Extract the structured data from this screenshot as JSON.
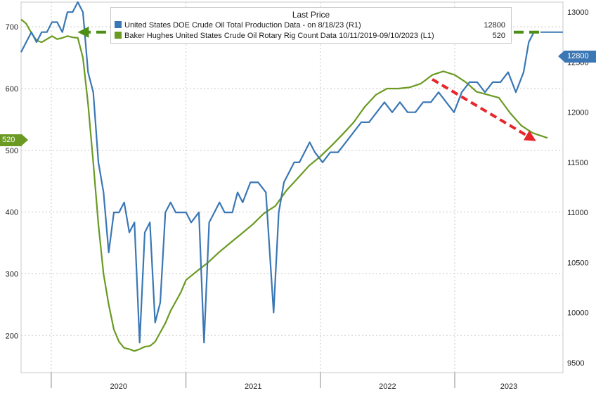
{
  "legend": {
    "header": "Last Price",
    "series_1_label": "United States DOE Crude Oil Total Production Data -  on 8/18/23  (R1)",
    "series_1_value": "12800",
    "series_2_label": "Baker Hughes United States Crude Oil Rotary Rig Count Data 10/11/2019-09/10/2023   (L1)",
    "series_2_value": "520"
  },
  "tags": {
    "right_value": "12800",
    "left_value": "520"
  },
  "colors": {
    "production": "#3a77b4",
    "rigs": "#6a9a22",
    "arrow_green": "#4d8f16",
    "arrow_red": "#e8262a",
    "grid": "#c8c8c8"
  },
  "chart_data": {
    "type": "line",
    "x_range": [
      "2019-10-11",
      "2023-09-10"
    ],
    "x_ticks": [
      "2020",
      "2021",
      "2022",
      "2023"
    ],
    "left_axis": {
      "ticks": [
        200,
        300,
        400,
        500,
        600,
        700
      ],
      "range": [
        140,
        740
      ]
    },
    "right_axis": {
      "ticks": [
        9500,
        10000,
        10500,
        11000,
        11500,
        12000,
        12500,
        13000
      ],
      "range": [
        9400,
        13100
      ]
    },
    "grid": true,
    "series": [
      {
        "name": "Baker Hughes United States Crude Oil Rotary Rig Count",
        "axis": "left",
        "points": [
          [
            "2019-10-11",
            712
          ],
          [
            "2019-10-25",
            705
          ],
          [
            "2019-11-08",
            690
          ],
          [
            "2019-11-22",
            678
          ],
          [
            "2019-12-06",
            675
          ],
          [
            "2019-12-20",
            680
          ],
          [
            "2020-01-03",
            685
          ],
          [
            "2020-01-17",
            680
          ],
          [
            "2020-01-31",
            682
          ],
          [
            "2020-02-14",
            685
          ],
          [
            "2020-02-28",
            683
          ],
          [
            "2020-03-13",
            682
          ],
          [
            "2020-03-27",
            650
          ],
          [
            "2020-04-10",
            575
          ],
          [
            "2020-04-24",
            480
          ],
          [
            "2020-05-08",
            380
          ],
          [
            "2020-05-22",
            300
          ],
          [
            "2020-06-05",
            250
          ],
          [
            "2020-06-19",
            210
          ],
          [
            "2020-07-03",
            190
          ],
          [
            "2020-07-17",
            180
          ],
          [
            "2020-07-31",
            178
          ],
          [
            "2020-08-14",
            175
          ],
          [
            "2020-08-28",
            178
          ],
          [
            "2020-09-11",
            182
          ],
          [
            "2020-09-25",
            183
          ],
          [
            "2020-10-09",
            190
          ],
          [
            "2020-10-23",
            205
          ],
          [
            "2020-11-06",
            220
          ],
          [
            "2020-11-20",
            240
          ],
          [
            "2020-12-04",
            255
          ],
          [
            "2020-12-18",
            270
          ],
          [
            "2021-01-01",
            290
          ],
          [
            "2021-02-01",
            305
          ],
          [
            "2021-03-01",
            318
          ],
          [
            "2021-04-01",
            335
          ],
          [
            "2021-05-01",
            350
          ],
          [
            "2021-06-01",
            365
          ],
          [
            "2021-07-01",
            380
          ],
          [
            "2021-08-01",
            398
          ],
          [
            "2021-09-01",
            410
          ],
          [
            "2021-10-01",
            435
          ],
          [
            "2021-11-01",
            455
          ],
          [
            "2021-12-01",
            475
          ],
          [
            "2022-01-01",
            490
          ],
          [
            "2022-02-01",
            508
          ],
          [
            "2022-03-01",
            525
          ],
          [
            "2022-04-01",
            545
          ],
          [
            "2022-05-01",
            570
          ],
          [
            "2022-06-01",
            590
          ],
          [
            "2022-07-01",
            600
          ],
          [
            "2022-08-01",
            600
          ],
          [
            "2022-09-01",
            602
          ],
          [
            "2022-10-01",
            608
          ],
          [
            "2022-11-01",
            622
          ],
          [
            "2022-12-01",
            628
          ],
          [
            "2023-01-01",
            622
          ],
          [
            "2023-02-01",
            610
          ],
          [
            "2023-03-01",
            595
          ],
          [
            "2023-04-01",
            590
          ],
          [
            "2023-05-01",
            585
          ],
          [
            "2023-06-01",
            560
          ],
          [
            "2023-07-01",
            540
          ],
          [
            "2023-08-01",
            528
          ],
          [
            "2023-09-10",
            520
          ]
        ]
      },
      {
        "name": "United States DOE Crude Oil Total Production",
        "axis": "right",
        "points": [
          [
            "2019-10-11",
            12600
          ],
          [
            "2019-10-25",
            12700
          ],
          [
            "2019-11-08",
            12800
          ],
          [
            "2019-11-22",
            12700
          ],
          [
            "2019-12-06",
            12800
          ],
          [
            "2019-12-20",
            12800
          ],
          [
            "2020-01-03",
            12900
          ],
          [
            "2020-01-17",
            12900
          ],
          [
            "2020-01-31",
            12800
          ],
          [
            "2020-02-14",
            13000
          ],
          [
            "2020-02-28",
            13000
          ],
          [
            "2020-03-13",
            13100
          ],
          [
            "2020-03-27",
            13000
          ],
          [
            "2020-04-10",
            12400
          ],
          [
            "2020-04-24",
            12200
          ],
          [
            "2020-05-08",
            11500
          ],
          [
            "2020-05-22",
            11200
          ],
          [
            "2020-06-05",
            10600
          ],
          [
            "2020-06-19",
            11000
          ],
          [
            "2020-07-03",
            11000
          ],
          [
            "2020-07-17",
            11100
          ],
          [
            "2020-07-31",
            10800
          ],
          [
            "2020-08-14",
            10900
          ],
          [
            "2020-08-28",
            9700
          ],
          [
            "2020-09-11",
            10800
          ],
          [
            "2020-09-25",
            10900
          ],
          [
            "2020-10-09",
            9900
          ],
          [
            "2020-10-23",
            10100
          ],
          [
            "2020-11-06",
            11000
          ],
          [
            "2020-11-20",
            11100
          ],
          [
            "2020-12-04",
            11000
          ],
          [
            "2020-12-18",
            11000
          ],
          [
            "2021-01-01",
            11000
          ],
          [
            "2021-01-15",
            10900
          ],
          [
            "2021-02-05",
            11000
          ],
          [
            "2021-02-19",
            9700
          ],
          [
            "2021-03-05",
            10900
          ],
          [
            "2021-03-19",
            11000
          ],
          [
            "2021-04-02",
            11100
          ],
          [
            "2021-04-16",
            11000
          ],
          [
            "2021-05-07",
            11000
          ],
          [
            "2021-05-21",
            11200
          ],
          [
            "2021-06-04",
            11100
          ],
          [
            "2021-06-25",
            11300
          ],
          [
            "2021-07-16",
            11300
          ],
          [
            "2021-08-06",
            11200
          ],
          [
            "2021-08-27",
            10000
          ],
          [
            "2021-09-10",
            11000
          ],
          [
            "2021-09-24",
            11300
          ],
          [
            "2021-10-08",
            11400
          ],
          [
            "2021-10-22",
            11500
          ],
          [
            "2021-11-05",
            11500
          ],
          [
            "2021-11-19",
            11600
          ],
          [
            "2021-12-03",
            11700
          ],
          [
            "2021-12-17",
            11600
          ],
          [
            "2022-01-07",
            11500
          ],
          [
            "2022-01-28",
            11600
          ],
          [
            "2022-02-18",
            11600
          ],
          [
            "2022-03-11",
            11700
          ],
          [
            "2022-04-01",
            11800
          ],
          [
            "2022-04-22",
            11900
          ],
          [
            "2022-05-13",
            11900
          ],
          [
            "2022-06-03",
            12000
          ],
          [
            "2022-06-24",
            12100
          ],
          [
            "2022-07-15",
            12000
          ],
          [
            "2022-08-05",
            12100
          ],
          [
            "2022-08-26",
            12000
          ],
          [
            "2022-09-16",
            12000
          ],
          [
            "2022-10-07",
            12100
          ],
          [
            "2022-10-28",
            12100
          ],
          [
            "2022-11-18",
            12200
          ],
          [
            "2022-12-09",
            12100
          ],
          [
            "2022-12-30",
            12000
          ],
          [
            "2023-01-20",
            12200
          ],
          [
            "2023-02-10",
            12300
          ],
          [
            "2023-03-03",
            12300
          ],
          [
            "2023-03-24",
            12200
          ],
          [
            "2023-04-14",
            12300
          ],
          [
            "2023-05-05",
            12300
          ],
          [
            "2023-05-26",
            12400
          ],
          [
            "2023-06-16",
            12200
          ],
          [
            "2023-07-07",
            12400
          ],
          [
            "2023-07-21",
            12700
          ],
          [
            "2023-08-04",
            12800
          ],
          [
            "2023-08-18",
            12800
          ]
        ]
      }
    ]
  }
}
